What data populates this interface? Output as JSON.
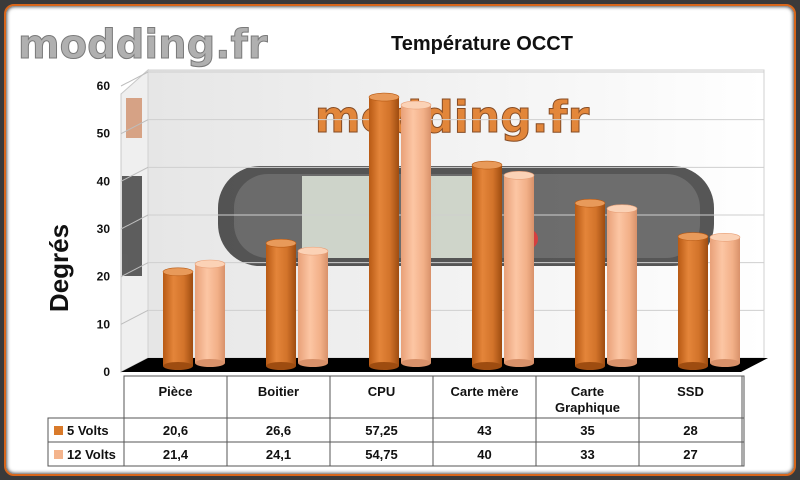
{
  "watermark": {
    "logo_text": "modding.fr",
    "center_text": "modding.fr"
  },
  "colors": {
    "series_5v": "#d97a2a",
    "series_12v": "#f4b48c",
    "border": "#d8661a",
    "floor": "#000000"
  },
  "chart_data": {
    "type": "bar",
    "title": "Température OCCT",
    "xlabel": "",
    "ylabel": "Degrés",
    "ylim": [
      0,
      60
    ],
    "yticks": [
      "0",
      "10",
      "20",
      "30",
      "40",
      "50",
      "60"
    ],
    "categories": [
      "Pièce",
      "Boitier",
      "CPU",
      "Carte mère",
      "Carte Graphique",
      "SSD"
    ],
    "series": [
      {
        "name": "5 Volts",
        "values": [
          20.6,
          26.6,
          57.25,
          43,
          35,
          28
        ],
        "labels": [
          "20,6",
          "26,6",
          "57,25",
          "43",
          "35",
          "28"
        ]
      },
      {
        "name": "12 Volts",
        "values": [
          21.4,
          24.1,
          54.75,
          40,
          33,
          27
        ],
        "labels": [
          "21,4",
          "24,1",
          "54,75",
          "40",
          "33",
          "27"
        ]
      }
    ],
    "grid": true,
    "legend": "data-table"
  }
}
